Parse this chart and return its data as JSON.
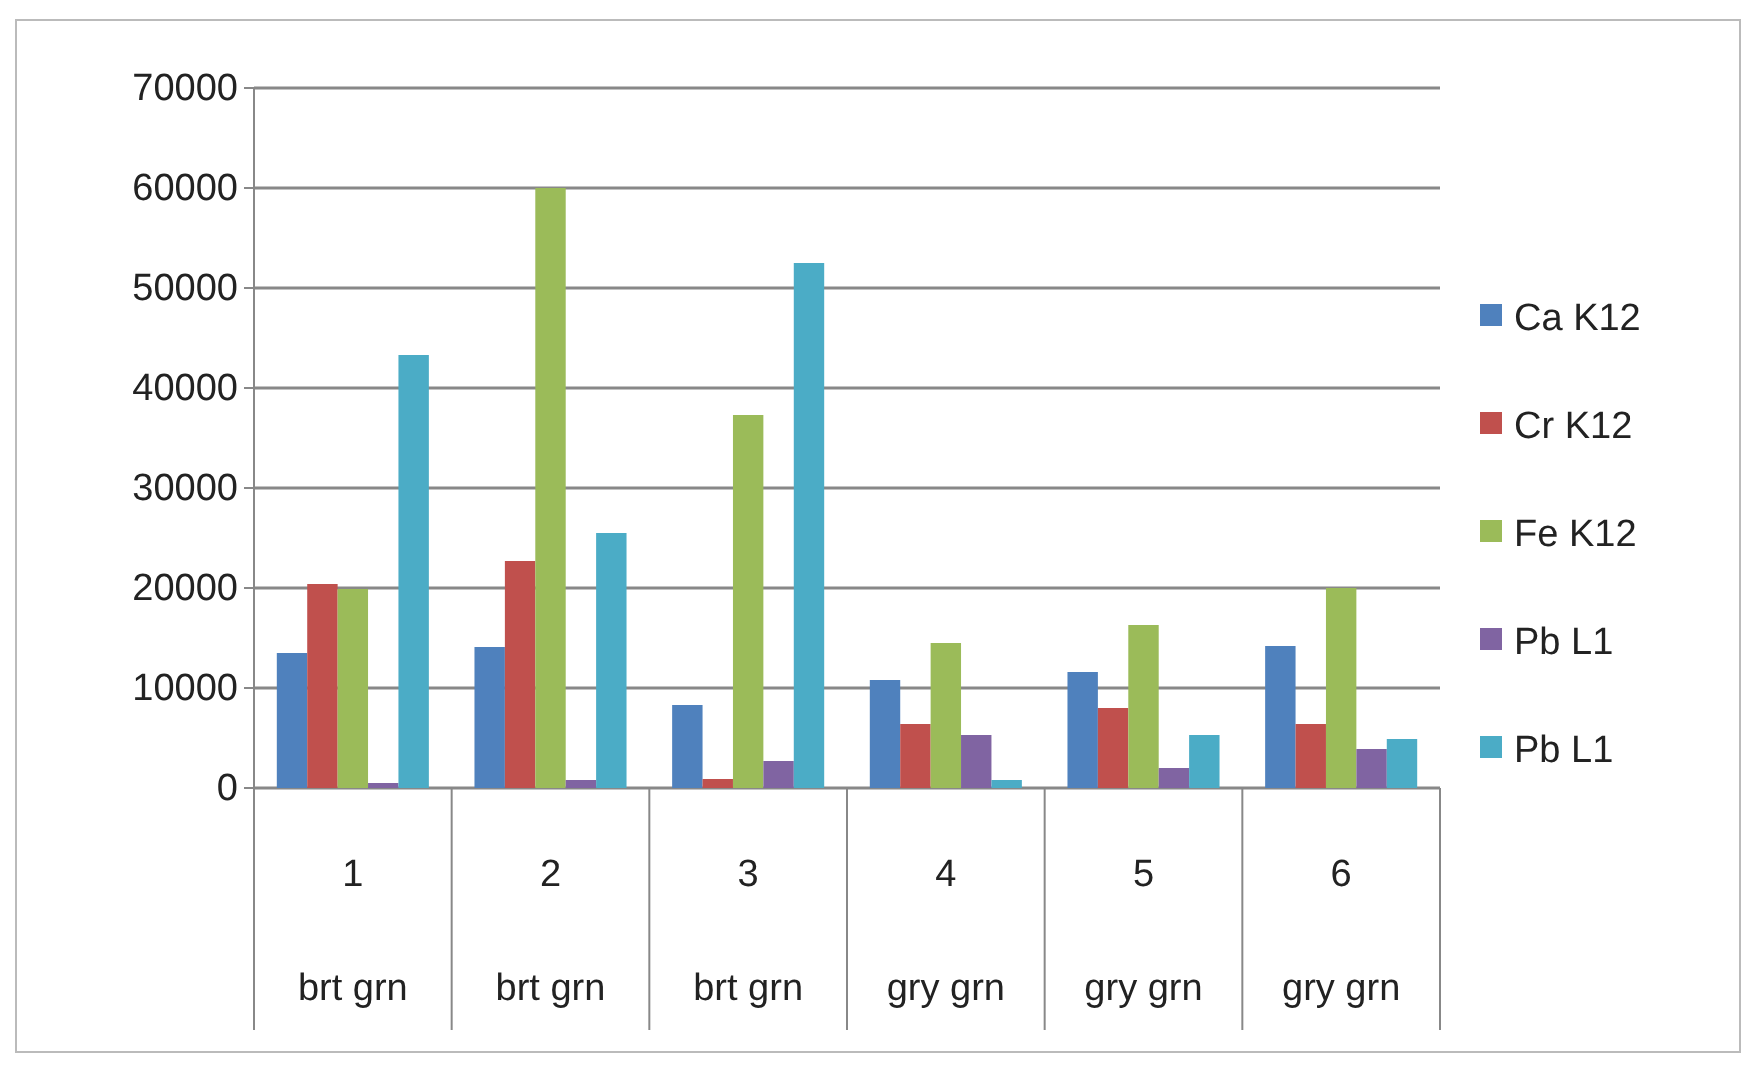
{
  "chart_data": {
    "type": "bar",
    "categories": [
      "1\nbrt grn",
      "2\nbrt grn",
      "3\nbrt grn",
      "4\ngry grn",
      "5\ngry grn",
      "6\ngry grn"
    ],
    "series": [
      {
        "name": "Ca K12",
        "color": "#4f81bd",
        "values": [
          13500,
          14100,
          8300,
          10800,
          11600,
          14200
        ]
      },
      {
        "name": "Cr K12",
        "color": "#c0504d",
        "values": [
          20400,
          22700,
          900,
          6400,
          8000,
          6400
        ]
      },
      {
        "name": "Fe K12",
        "color": "#9bbb59",
        "values": [
          19900,
          60000,
          37300,
          14500,
          16300,
          20000
        ]
      },
      {
        "name": "Pb L1",
        "color": "#8064a2",
        "values": [
          500,
          800,
          2700,
          5300,
          2000,
          3900
        ]
      },
      {
        "name": "Pb L1",
        "color": "#4bacc6",
        "values": [
          43300,
          25500,
          52500,
          800,
          5300,
          4900
        ]
      }
    ],
    "ylim": [
      0,
      70000
    ],
    "yticks": [
      0,
      10000,
      20000,
      30000,
      40000,
      50000,
      60000,
      70000
    ],
    "grid": "y",
    "legend": "right"
  }
}
